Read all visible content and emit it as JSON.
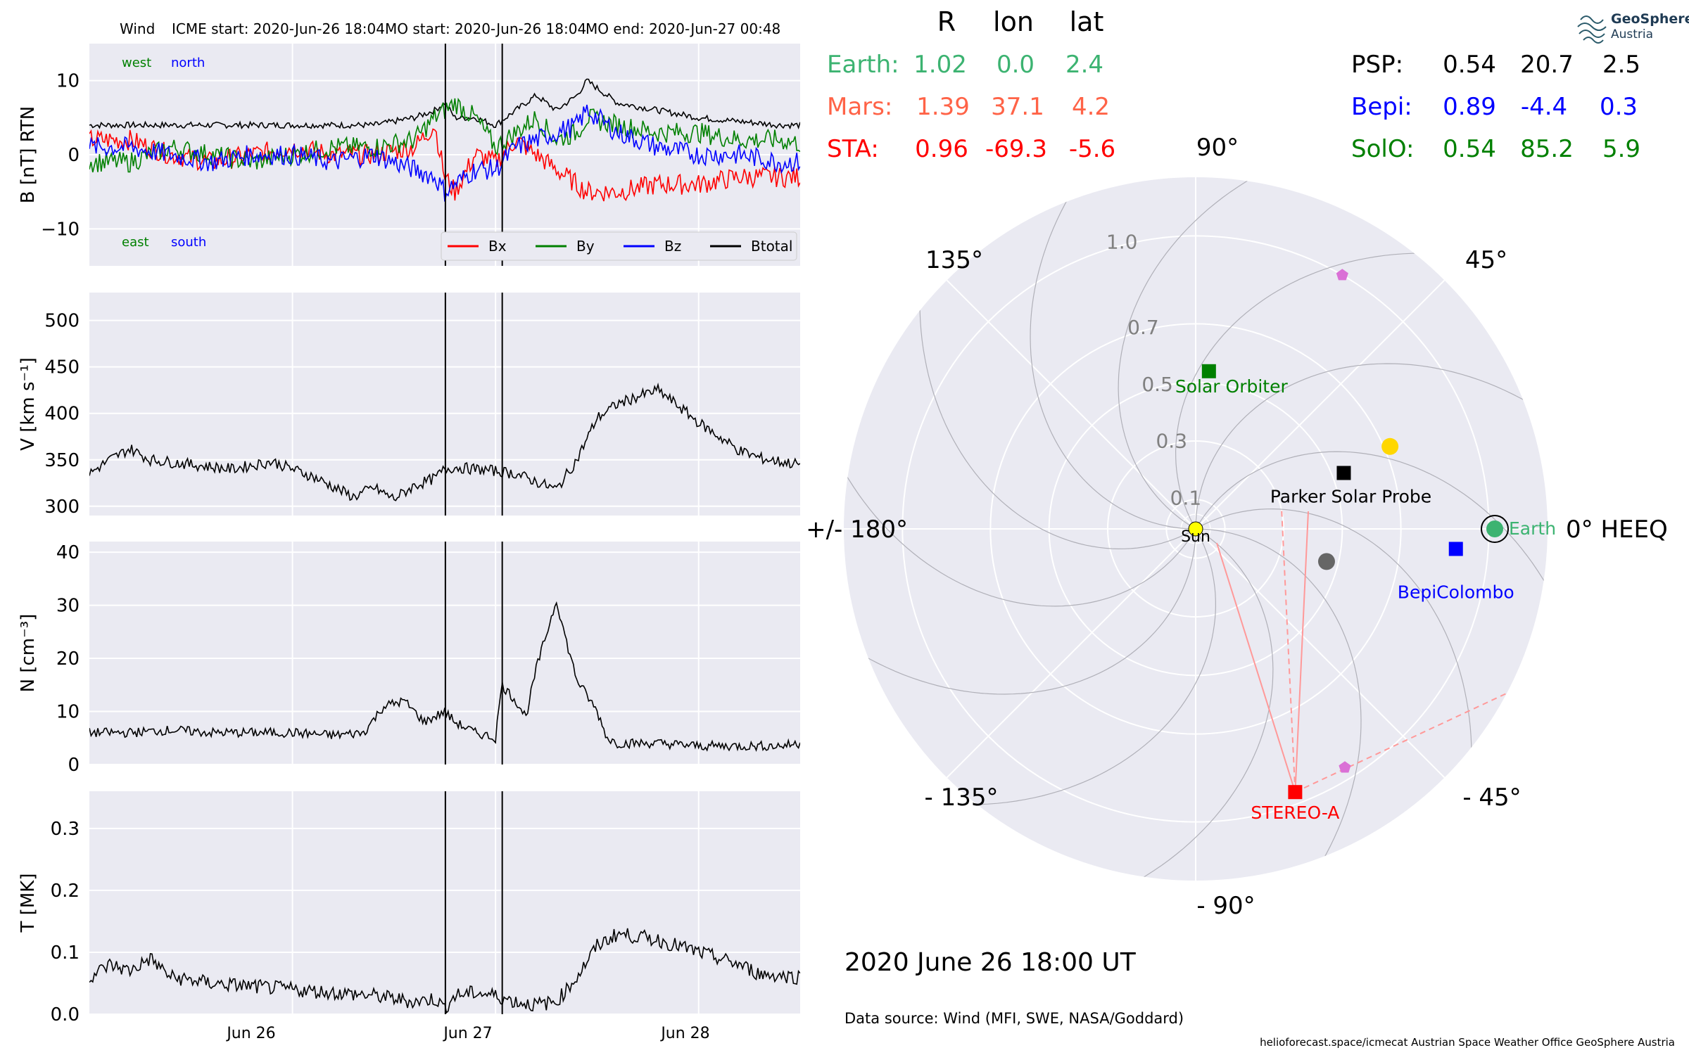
{
  "colors": {
    "bx": "#ff0000",
    "by": "#008000",
    "bz": "#0000ff",
    "btotal": "#000000",
    "earth": "#3cb371",
    "mars": "#ff6347",
    "sta": "#ff0000",
    "psp": "#000000",
    "bepi": "#0000ff",
    "solo": "#008000",
    "panel_bg": "#eaeaf2",
    "grid": "#ffffff",
    "sun": "#ffff00",
    "planet_gold": "#ffd700"
  },
  "header": {
    "instrument": "Wind",
    "icme_start": "ICME start: 2020-Jun-26 18:04",
    "mo_start": "MO start: 2020-Jun-26 18:04",
    "mo_end": "MO end: 2020-Jun-27 00:48"
  },
  "logo": {
    "line1": "GeoSphere",
    "line2": "Austria"
  },
  "positions_table": {
    "headers": [
      "R",
      "lon",
      "lat"
    ],
    "rows": [
      {
        "name": "Earth:",
        "R": "1.02",
        "lon": "0.0",
        "lat": "2.4",
        "color_key": "earth"
      },
      {
        "name": "Mars:",
        "R": "1.39",
        "lon": "37.1",
        "lat": "4.2",
        "color_key": "mars"
      },
      {
        "name": "STA:",
        "R": "0.96",
        "lon": "-69.3",
        "lat": "-5.6",
        "color_key": "sta"
      },
      {
        "name": "PSP:",
        "R": "0.54",
        "lon": "20.7",
        "lat": "2.5",
        "color_key": "psp"
      },
      {
        "name": "Bepi:",
        "R": "0.89",
        "lon": "-4.4",
        "lat": "0.3",
        "color_key": "bepi"
      },
      {
        "name": "SolO:",
        "R": "0.54",
        "lon": "85.2",
        "lat": "5.9",
        "color_key": "solo"
      }
    ]
  },
  "chart_data": [
    {
      "type": "line",
      "panel": "B",
      "ylabel": "B [nT] RTN",
      "ylim": [
        -15,
        15
      ],
      "yticks": [
        "10",
        "0",
        "−10"
      ],
      "annotations": {
        "top_left": [
          "west",
          "north"
        ],
        "bottom_left": [
          "east",
          "south"
        ]
      },
      "legend": [
        "Bx",
        "By",
        "Bz",
        "Btotal"
      ],
      "legend_position": "lower right",
      "x_unit": "days since 2020-06-25 00:00 UT",
      "vlines": [
        1.753,
        2.033
      ],
      "series": [
        {
          "name": "Btotal",
          "x": [
            0.2,
            0.4,
            0.6,
            0.8,
            1.0,
            1.2,
            1.4,
            1.6,
            1.7,
            1.75,
            1.8,
            1.9,
            2.0,
            2.1,
            2.2,
            2.3,
            2.4,
            2.45,
            2.6,
            2.8,
            3.0,
            3.2,
            3.4,
            3.5
          ],
          "y": [
            4,
            4,
            4,
            4,
            4,
            4,
            4,
            5,
            6,
            7,
            5,
            5,
            4,
            6,
            8,
            6,
            8,
            10,
            7,
            6,
            5,
            4.5,
            4,
            4
          ]
        },
        {
          "name": "Bx",
          "x": [
            0.2,
            0.4,
            0.6,
            0.8,
            1.0,
            1.2,
            1.4,
            1.6,
            1.7,
            1.75,
            1.8,
            1.9,
            2.0,
            2.1,
            2.2,
            2.3,
            2.4,
            2.45,
            2.6,
            2.8,
            3.0,
            3.2,
            3.4,
            3.5
          ],
          "y": [
            2,
            0,
            -1,
            0,
            1,
            0,
            0,
            1,
            4,
            -3,
            -5,
            0,
            -1,
            2,
            0,
            -2,
            -4,
            -5,
            -5,
            -4,
            -4,
            -3,
            -3,
            -3
          ]
        },
        {
          "name": "By",
          "x": [
            0.2,
            0.4,
            0.6,
            0.8,
            1.0,
            1.2,
            1.4,
            1.6,
            1.7,
            1.75,
            1.8,
            1.9,
            2.0,
            2.1,
            2.2,
            2.3,
            2.4,
            2.45,
            2.6,
            2.8,
            3.0,
            3.2,
            3.4,
            3.5
          ],
          "y": [
            -1,
            1,
            0,
            -1,
            0,
            1,
            1,
            2,
            5,
            6,
            7,
            5,
            1,
            3,
            5,
            2,
            3,
            5,
            4,
            3,
            3,
            2,
            2,
            1.5
          ]
        },
        {
          "name": "Bz",
          "x": [
            0.2,
            0.4,
            0.6,
            0.8,
            1.0,
            1.2,
            1.4,
            1.6,
            1.7,
            1.75,
            1.8,
            1.9,
            2.0,
            2.1,
            2.2,
            2.3,
            2.4,
            2.45,
            2.6,
            2.8,
            3.0,
            3.2,
            3.4,
            3.5
          ],
          "y": [
            1,
            0,
            -1,
            0,
            0,
            -1,
            0,
            -2,
            -3,
            -5,
            -4,
            -2,
            -2,
            1,
            2,
            3,
            4,
            6,
            3,
            1,
            0,
            0,
            -1,
            -1
          ]
        }
      ]
    },
    {
      "type": "line",
      "panel": "V",
      "ylabel": "V [km s⁻¹]",
      "ylim": [
        290,
        530
      ],
      "yticks": [
        "500",
        "450",
        "400",
        "350",
        "300"
      ],
      "vlines": [
        1.753,
        2.033
      ],
      "series": [
        {
          "name": "V",
          "x": [
            0.0,
            0.1,
            0.2,
            0.3,
            0.5,
            0.7,
            0.9,
            1.1,
            1.3,
            1.4,
            1.5,
            1.6,
            1.7,
            1.75,
            1.8,
            1.9,
            2.0,
            2.1,
            2.3,
            2.4,
            2.5,
            2.6,
            2.7,
            2.8,
            2.9,
            3.0,
            3.1,
            3.2,
            3.3,
            3.4,
            3.5
          ],
          "y": [
            335,
            350,
            362,
            350,
            345,
            340,
            348,
            332,
            310,
            320,
            308,
            322,
            330,
            340,
            342,
            340,
            338,
            335,
            318,
            350,
            395,
            410,
            418,
            425,
            408,
            390,
            375,
            360,
            352,
            348,
            345
          ]
        }
      ]
    },
    {
      "type": "line",
      "panel": "N",
      "ylabel": "N [cm⁻³]",
      "ylim": [
        0,
        42
      ],
      "yticks": [
        "40",
        "30",
        "20",
        "10",
        "0"
      ],
      "vlines": [
        1.753,
        2.033
      ],
      "series": [
        {
          "name": "N",
          "x": [
            0.0,
            0.2,
            0.4,
            0.6,
            0.8,
            1.0,
            1.2,
            1.35,
            1.45,
            1.55,
            1.65,
            1.75,
            1.8,
            1.9,
            2.0,
            2.03,
            2.1,
            2.15,
            2.2,
            2.3,
            2.35,
            2.4,
            2.5,
            2.55,
            2.6,
            2.8,
            3.0,
            3.2,
            3.4,
            3.5
          ],
          "y": [
            6,
            6,
            6.5,
            6,
            6,
            6,
            5.5,
            6,
            11,
            12,
            8,
            10,
            8,
            6,
            5,
            15,
            12,
            9,
            18,
            31,
            23,
            16,
            10,
            5,
            4,
            4,
            3.5,
            3.5,
            3.5,
            4
          ]
        }
      ]
    },
    {
      "type": "line",
      "panel": "T",
      "ylabel": "T [MK]",
      "ylim": [
        0,
        0.36
      ],
      "yticks": [
        "0.3",
        "0.2",
        "0.1",
        "0.0"
      ],
      "vlines": [
        1.753,
        2.033
      ],
      "series": [
        {
          "name": "T",
          "x": [
            0.0,
            0.1,
            0.2,
            0.3,
            0.4,
            0.6,
            0.8,
            1.0,
            1.2,
            1.4,
            1.6,
            1.7,
            1.75,
            1.8,
            1.9,
            2.0,
            2.1,
            2.2,
            2.3,
            2.4,
            2.5,
            2.6,
            2.8,
            3.0,
            3.1,
            3.2,
            3.3,
            3.5
          ],
          "y": [
            0.06,
            0.08,
            0.07,
            0.09,
            0.06,
            0.05,
            0.045,
            0.04,
            0.035,
            0.03,
            0.02,
            0.025,
            0.01,
            0.03,
            0.035,
            0.03,
            0.02,
            0.015,
            0.02,
            0.06,
            0.11,
            0.13,
            0.12,
            0.1,
            0.09,
            0.08,
            0.065,
            0.06
          ]
        }
      ]
    },
    {
      "type": "scatter",
      "panel": "polar",
      "coordinate_system": "HEEQ polar (r in AU, longitude in degrees)",
      "angle_labels": [
        {
          "deg": 0,
          "label": "0° HEEQ"
        },
        {
          "deg": 45,
          "label": "45°"
        },
        {
          "deg": 90,
          "label": "90°"
        },
        {
          "deg": 135,
          "label": "135°"
        },
        {
          "deg": 180,
          "label": "+/- 180°"
        },
        {
          "deg": -135,
          "label": "- 135°"
        },
        {
          "deg": -90,
          "label": "- 90°"
        },
        {
          "deg": -45,
          "label": "- 45°"
        }
      ],
      "radial_ticks": [
        {
          "r": 0.1,
          "label": "0.1"
        },
        {
          "r": 0.3,
          "label": "0.3"
        },
        {
          "r": 0.5,
          "label": "0.5"
        },
        {
          "r": 0.7,
          "label": "0.7"
        },
        {
          "r": 1.0,
          "label": "1.0"
        }
      ],
      "rlim": [
        0,
        1.2
      ],
      "bodies": [
        {
          "name": "Sun",
          "r": 0.0,
          "lon": 0,
          "marker": "circle",
          "color_key": "sun"
        },
        {
          "name": "Earth",
          "r": 1.02,
          "lon": 0.0,
          "marker": "circle",
          "color_key": "earth"
        },
        {
          "name": "STEREO-A",
          "r": 0.96,
          "lon": -69.3,
          "marker": "square",
          "color_key": "sta"
        },
        {
          "name": "Parker Solar Probe",
          "r": 0.54,
          "lon": 20.7,
          "marker": "square",
          "color_key": "psp"
        },
        {
          "name": "BepiColombo",
          "r": 0.89,
          "lon": -4.4,
          "marker": "square",
          "color_key": "bepi"
        },
        {
          "name": "Solar Orbiter",
          "r": 0.54,
          "lon": 85.2,
          "marker": "square",
          "color_key": "solo"
        },
        {
          "name": "",
          "r": 0.72,
          "lon": 23,
          "marker": "circle",
          "color": "#ffd700"
        },
        {
          "name": "",
          "r": 0.46,
          "lon": -14,
          "marker": "circle",
          "color": "#666666"
        },
        {
          "name": "",
          "r": 1.0,
          "lon": 60,
          "marker": "pentagon",
          "color": "#da70d6"
        },
        {
          "name": "",
          "r": 0.96,
          "lon": -58,
          "marker": "pentagon",
          "color": "#da70d6"
        }
      ]
    }
  ],
  "date_label": "2020 June 26  18:00 UT",
  "data_source": "Data source: Wind (MFI, SWE, NASA/Goddard)",
  "x_ticks": [
    "Jun 26",
    "Jun 27",
    "Jun 28"
  ],
  "footer": "helioforecast.space/icmecat   Austrian Space Weather Office   GeoSphere Austria"
}
